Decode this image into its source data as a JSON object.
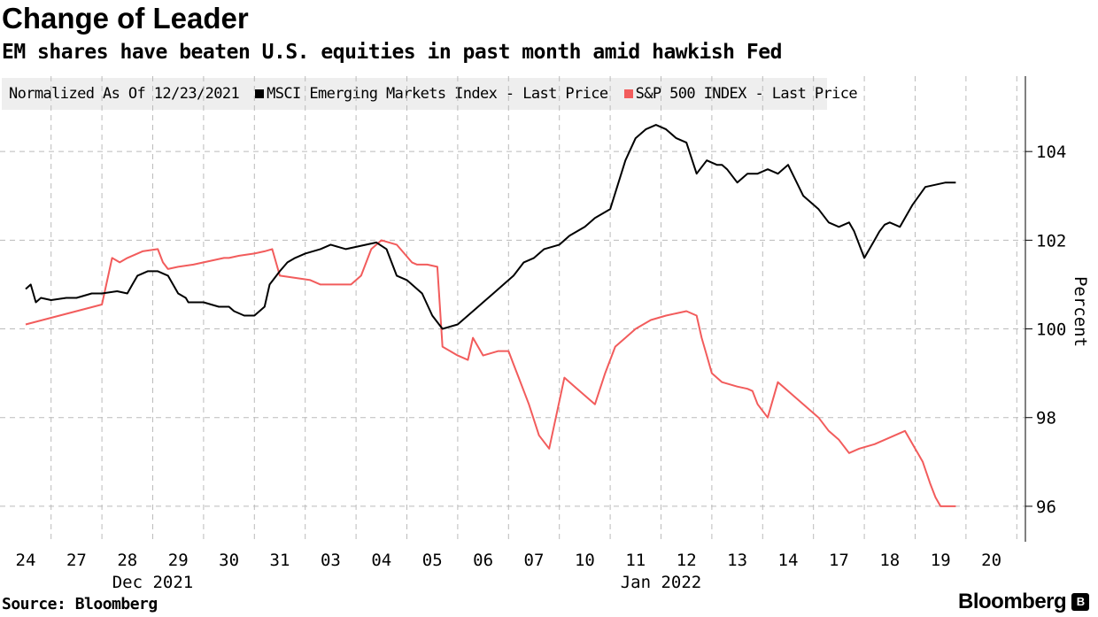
{
  "header": {
    "title": "Change of Leader",
    "subtitle": "EM shares have beaten U.S. equities in past month amid hawkish Fed"
  },
  "legend": {
    "normalized_label": "Normalized As Of 12/23/2021",
    "items": [
      {
        "label": "MSCI Emerging Markets Index - Last Price",
        "color": "#000000"
      },
      {
        "label": "S&P 500 INDEX - Last Price",
        "color": "#f25c5c"
      }
    ]
  },
  "footer": {
    "source": "Source: Bloomberg",
    "brand": "Bloomberg",
    "brand_logo": "B"
  },
  "chart_data": {
    "type": "line",
    "title": "Change of Leader",
    "subtitle": "EM shares have beaten U.S. equities in past month amid hawkish Fed",
    "xlabel": "",
    "ylabel": "Percent",
    "ylim": [
      95.2,
      105.7
    ],
    "yticks": [
      96,
      98,
      100,
      102,
      104
    ],
    "x_ticks": [
      "24",
      "27",
      "28",
      "29",
      "30",
      "31",
      "03",
      "04",
      "05",
      "06",
      "07",
      "10",
      "11",
      "12",
      "13",
      "14",
      "17",
      "18",
      "19",
      "20"
    ],
    "x_groups": [
      {
        "label": "Dec 2021",
        "at": 2.5
      },
      {
        "label": "Jan 2022",
        "at": 12.5
      }
    ],
    "x_range": [
      0,
      20
    ],
    "series": [
      {
        "name": "MSCI Emerging Markets Index - Last Price",
        "color": "#000000",
        "x": [
          0.0,
          0.1,
          0.2,
          0.3,
          0.5,
          0.8,
          1.0,
          1.3,
          1.5,
          1.8,
          2.0,
          2.1,
          2.2,
          2.4,
          2.6,
          2.8,
          3.0,
          3.15,
          3.2,
          3.5,
          3.8,
          4.0,
          4.1,
          4.3,
          4.5,
          4.7,
          4.8,
          5.0,
          5.15,
          5.3,
          5.5,
          5.8,
          6.0,
          6.3,
          6.5,
          6.7,
          6.9,
          7.1,
          7.3,
          7.5,
          7.6,
          7.8,
          8.0,
          8.2,
          8.5,
          8.7,
          8.9,
          9.0,
          9.2,
          9.4,
          9.6,
          9.8,
          10.0,
          10.2,
          10.5,
          10.7,
          11.0,
          11.2,
          11.5,
          11.8,
          12.0,
          12.2,
          12.4,
          12.6,
          12.8,
          13.0,
          13.2,
          13.4,
          13.6,
          13.7,
          13.8,
          14.0,
          14.2,
          14.4,
          14.6,
          14.8,
          15.0,
          15.3,
          15.6,
          15.8,
          16.0,
          16.2,
          16.3,
          16.5,
          16.7,
          16.8,
          16.9,
          17.0,
          17.2,
          17.3,
          17.45,
          17.7,
          17.9,
          18.1,
          18.3
        ],
        "y": [
          100.9,
          101.0,
          100.6,
          100.7,
          100.65,
          100.7,
          100.7,
          100.8,
          100.8,
          100.85,
          100.8,
          101.0,
          101.2,
          101.3,
          101.3,
          101.2,
          100.8,
          100.7,
          100.6,
          100.6,
          100.5,
          100.5,
          100.4,
          100.3,
          100.3,
          100.5,
          101.0,
          101.3,
          101.5,
          101.6,
          101.7,
          101.8,
          101.9,
          101.8,
          101.85,
          101.9,
          101.95,
          101.8,
          101.2,
          101.1,
          101.0,
          100.8,
          100.3,
          100.0,
          100.1,
          100.3,
          100.5,
          100.6,
          100.8,
          101.0,
          101.2,
          101.5,
          101.6,
          101.8,
          101.9,
          102.1,
          102.3,
          102.5,
          102.7,
          103.8,
          104.3,
          104.5,
          104.6,
          104.5,
          104.3,
          104.2,
          103.5,
          103.8,
          103.7,
          103.7,
          103.6,
          103.3,
          103.5,
          103.5,
          103.6,
          103.5,
          103.7,
          103.0,
          102.7,
          102.4,
          102.3,
          102.4,
          102.2,
          101.6,
          102.0,
          102.2,
          102.35,
          102.4,
          102.3,
          102.5,
          102.8,
          103.2,
          103.25,
          103.3,
          103.3
        ]
      },
      {
        "name": "S&P 500 INDEX - Last Price",
        "color": "#f25c5c",
        "x": [
          0.0,
          0.5,
          1.0,
          1.5,
          1.7,
          1.85,
          2.0,
          2.3,
          2.6,
          2.7,
          2.8,
          3.0,
          3.3,
          3.5,
          3.7,
          3.9,
          4.0,
          4.2,
          4.5,
          4.7,
          4.85,
          5.0,
          5.3,
          5.6,
          5.8,
          5.9,
          6.1,
          6.4,
          6.6,
          6.8,
          7.0,
          7.3,
          7.6,
          7.7,
          7.9,
          8.1,
          8.2,
          8.5,
          8.7,
          8.8,
          9.0,
          9.3,
          9.5,
          9.6,
          9.7,
          9.9,
          10.1,
          10.3,
          10.6,
          10.8,
          11.0,
          11.2,
          11.4,
          11.6,
          11.8,
          12.0,
          12.3,
          12.6,
          12.8,
          13.0,
          13.2,
          13.3,
          13.4,
          13.5,
          13.7,
          14.0,
          14.2,
          14.3,
          14.4,
          14.6,
          14.8,
          15.0,
          15.3,
          15.6,
          15.8,
          16.0,
          16.2,
          16.4,
          16.7,
          16.9,
          17.1,
          17.3,
          17.45,
          17.55,
          17.65,
          17.8,
          17.9,
          18.0,
          18.1,
          18.2,
          18.3
        ],
        "y": [
          100.1,
          100.25,
          100.4,
          100.55,
          101.6,
          101.5,
          101.6,
          101.75,
          101.8,
          101.5,
          101.35,
          101.4,
          101.45,
          101.5,
          101.55,
          101.6,
          101.6,
          101.65,
          101.7,
          101.75,
          101.8,
          101.2,
          101.15,
          101.1,
          101.0,
          101.0,
          101.0,
          101.0,
          101.2,
          101.8,
          102.0,
          101.9,
          101.5,
          101.45,
          101.45,
          101.4,
          99.6,
          99.4,
          99.3,
          99.8,
          99.4,
          99.5,
          99.5,
          99.2,
          98.9,
          98.3,
          97.6,
          97.3,
          98.9,
          98.7,
          98.5,
          98.3,
          99.0,
          99.6,
          99.8,
          100.0,
          100.2,
          100.3,
          100.35,
          100.4,
          100.3,
          99.8,
          99.4,
          99.0,
          98.8,
          98.7,
          98.65,
          98.6,
          98.3,
          98.0,
          98.8,
          98.6,
          98.3,
          98.0,
          97.7,
          97.5,
          97.2,
          97.3,
          97.4,
          97.5,
          97.6,
          97.7,
          97.4,
          97.2,
          97.0,
          96.5,
          96.2,
          96.0,
          96.0,
          96.0,
          96.0
        ]
      }
    ]
  }
}
